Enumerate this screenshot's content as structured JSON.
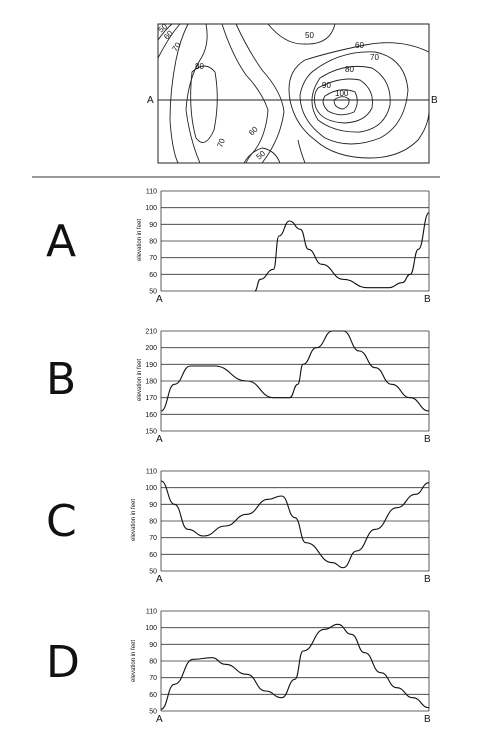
{
  "contour_map": {
    "labels": [
      "50",
      "60",
      "70",
      "80",
      "50",
      "60",
      "70",
      "80",
      "90",
      "100",
      "70",
      "60",
      "50"
    ],
    "line_endpoints": [
      "A",
      "B"
    ]
  },
  "ylabel": "elevation in feet",
  "profiles": [
    {
      "letter": "A",
      "x_start": "A",
      "x_end": "B",
      "yticks": [
        "110",
        "100",
        "90",
        "80",
        "70",
        "60",
        "50"
      ],
      "ymin": 50,
      "ymax": 110,
      "points": [
        [
          0.35,
          50
        ],
        [
          0.37,
          57
        ],
        [
          0.42,
          63
        ],
        [
          0.44,
          83
        ],
        [
          0.48,
          92
        ],
        [
          0.52,
          87
        ],
        [
          0.55,
          75
        ],
        [
          0.6,
          66
        ],
        [
          0.68,
          57
        ],
        [
          0.77,
          52
        ],
        [
          0.85,
          52
        ],
        [
          0.9,
          55
        ],
        [
          0.93,
          60
        ],
        [
          0.96,
          75
        ],
        [
          1.0,
          97
        ]
      ]
    },
    {
      "letter": "B",
      "x_start": "A",
      "x_end": "B",
      "yticks": [
        "210",
        "200",
        "190",
        "180",
        "170",
        "160",
        "150"
      ],
      "ymin": 150,
      "ymax": 210,
      "points": [
        [
          0.0,
          162
        ],
        [
          0.05,
          178
        ],
        [
          0.11,
          189
        ],
        [
          0.2,
          189
        ],
        [
          0.32,
          180
        ],
        [
          0.42,
          170
        ],
        [
          0.48,
          170
        ],
        [
          0.51,
          178
        ],
        [
          0.53,
          190
        ],
        [
          0.58,
          200
        ],
        [
          0.64,
          210
        ],
        [
          0.68,
          210
        ],
        [
          0.74,
          198
        ],
        [
          0.8,
          188
        ],
        [
          0.86,
          178
        ],
        [
          0.93,
          170
        ],
        [
          1.0,
          162
        ]
      ]
    },
    {
      "letter": "C",
      "x_start": "A",
      "x_end": "B",
      "yticks": [
        "110",
        "100",
        "90",
        "80",
        "70",
        "60",
        "50"
      ],
      "ymin": 50,
      "ymax": 110,
      "points": [
        [
          0.0,
          104
        ],
        [
          0.05,
          90
        ],
        [
          0.1,
          75
        ],
        [
          0.16,
          71
        ],
        [
          0.24,
          77
        ],
        [
          0.32,
          84
        ],
        [
          0.4,
          93
        ],
        [
          0.45,
          95
        ],
        [
          0.5,
          82
        ],
        [
          0.54,
          67
        ],
        [
          0.64,
          55
        ],
        [
          0.68,
          52
        ],
        [
          0.73,
          62
        ],
        [
          0.8,
          75
        ],
        [
          0.88,
          88
        ],
        [
          0.95,
          96
        ],
        [
          1.0,
          103
        ]
      ]
    },
    {
      "letter": "D",
      "x_start": "A",
      "x_end": "B",
      "yticks": [
        "110",
        "100",
        "90",
        "80",
        "70",
        "60",
        "50"
      ],
      "ymin": 50,
      "ymax": 110,
      "points": [
        [
          0.0,
          51
        ],
        [
          0.05,
          66
        ],
        [
          0.12,
          81
        ],
        [
          0.19,
          82
        ],
        [
          0.24,
          78
        ],
        [
          0.32,
          72
        ],
        [
          0.39,
          62
        ],
        [
          0.45,
          58
        ],
        [
          0.5,
          69
        ],
        [
          0.53,
          86
        ],
        [
          0.61,
          99
        ],
        [
          0.66,
          102
        ],
        [
          0.71,
          96
        ],
        [
          0.76,
          85
        ],
        [
          0.82,
          73
        ],
        [
          0.88,
          64
        ],
        [
          0.94,
          58
        ],
        [
          1.0,
          52
        ]
      ]
    }
  ]
}
